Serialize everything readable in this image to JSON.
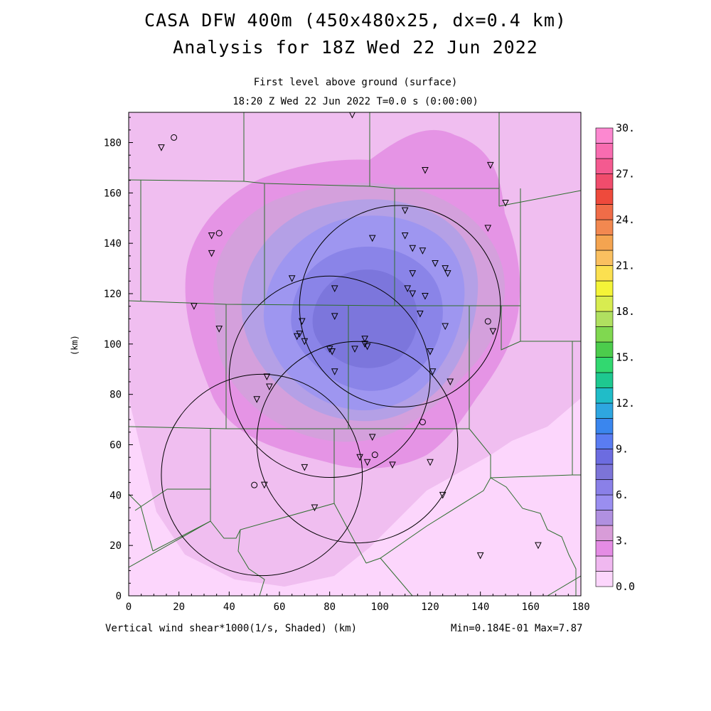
{
  "titles": {
    "line1": "CASA DFW 400m (450x480x25, dx=0.4 km)",
    "line2": "Analysis for 18Z Wed 22 Jun 2022",
    "sub1": "First level above ground (surface)",
    "sub2": "18:20 Z Wed 22 Jun 2022   T=0.0 s (0:00:00)"
  },
  "footer": {
    "field": "Vertical wind shear*1000(1/s, Shaded)  (km)",
    "minmax": "Min=0.184E-01 Max=7.87"
  },
  "axes": {
    "xlabel": "",
    "ylabel": "(km)",
    "x_ticks": [
      "0",
      "20",
      "40",
      "60",
      "80",
      "100",
      "120",
      "140",
      "160",
      "180"
    ],
    "y_ticks": [
      "0",
      "20",
      "40",
      "60",
      "80",
      "100",
      "120",
      "140",
      "160",
      "180"
    ],
    "xlim": [
      0,
      180
    ],
    "ylim": [
      0,
      192
    ]
  },
  "colorbar": {
    "labels": [
      "0.0",
      "3.",
      "6.",
      "9.",
      "12.",
      "15.",
      "18.",
      "21.",
      "24.",
      "27.",
      "30."
    ],
    "colors": [
      "#fcd6fc",
      "#f0b8f0",
      "#e48ce4",
      "#d89cd8",
      "#b090e0",
      "#9a8ef0",
      "#8a80e8",
      "#7c74d8",
      "#6c6ce0",
      "#5a7cf2",
      "#3a86ee",
      "#2ea6e0",
      "#20bcc8",
      "#1ec890",
      "#32d870",
      "#4ccc4c",
      "#80d850",
      "#b0e060",
      "#d8ec50",
      "#f4f438",
      "#fbe050",
      "#fac060",
      "#f4a450",
      "#f28850",
      "#f06c48",
      "#ee4a3c",
      "#f04c6c",
      "#f45a90",
      "#f86cb0",
      "#fc88d0"
    ]
  },
  "field": {
    "min": 0.0184,
    "max": 7.87,
    "peak_center_km": [
      100,
      110
    ]
  },
  "radar_rings": [
    {
      "cx": 108,
      "cy": 115,
      "r": 40
    },
    {
      "cx": 80,
      "cy": 87,
      "r": 40
    },
    {
      "cx": 91,
      "cy": 61,
      "r": 40
    },
    {
      "cx": 53,
      "cy": 48,
      "r": 40
    }
  ],
  "stations_triangle": [
    [
      13,
      178
    ],
    [
      89,
      191
    ],
    [
      118,
      169
    ],
    [
      144,
      171
    ],
    [
      150,
      156
    ],
    [
      143,
      146
    ],
    [
      33,
      143
    ],
    [
      33,
      136
    ],
    [
      26,
      115
    ],
    [
      36,
      106
    ],
    [
      65,
      126
    ],
    [
      68,
      104
    ],
    [
      67,
      103
    ],
    [
      69,
      109
    ],
    [
      70,
      101
    ],
    [
      82,
      122
    ],
    [
      82,
      111
    ],
    [
      80,
      98
    ],
    [
      81,
      97
    ],
    [
      82,
      89
    ],
    [
      90,
      98
    ],
    [
      94,
      102
    ],
    [
      94,
      100
    ],
    [
      95,
      99
    ],
    [
      97,
      142
    ],
    [
      110,
      153
    ],
    [
      110,
      143
    ],
    [
      113,
      138
    ],
    [
      117,
      137
    ],
    [
      122,
      132
    ],
    [
      126,
      130
    ],
    [
      127,
      128
    ],
    [
      113,
      128
    ],
    [
      111,
      122
    ],
    [
      113,
      120
    ],
    [
      118,
      119
    ],
    [
      116,
      112
    ],
    [
      126,
      107
    ],
    [
      145,
      105
    ],
    [
      120,
      97
    ],
    [
      121,
      89
    ],
    [
      128,
      85
    ],
    [
      55,
      87
    ],
    [
      56,
      83
    ],
    [
      51,
      78
    ],
    [
      97,
      63
    ],
    [
      92,
      55
    ],
    [
      95,
      53
    ],
    [
      105,
      52
    ],
    [
      120,
      53
    ],
    [
      125,
      40
    ],
    [
      70,
      51
    ],
    [
      74,
      35
    ],
    [
      54,
      44
    ],
    [
      140,
      16
    ],
    [
      163,
      20
    ]
  ],
  "stations_circle": [
    [
      18,
      182
    ],
    [
      36,
      144
    ],
    [
      143,
      109
    ],
    [
      117,
      69
    ],
    [
      98,
      56
    ],
    [
      50,
      44
    ]
  ]
}
